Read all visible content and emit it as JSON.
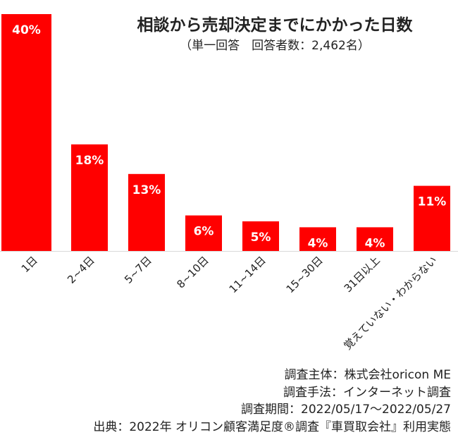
{
  "chart_data": {
    "type": "bar",
    "title": "相談から売却決定までにかかった日数",
    "subtitle": "（単一回答　回答者数：2,462名）",
    "categories": [
      "1日",
      "2~4日",
      "5~7日",
      "8~10日",
      "11~14日",
      "15~30日",
      "31日以上",
      "覚えていない・わからない"
    ],
    "values": [
      40,
      18,
      13,
      6,
      5,
      4,
      4,
      11
    ],
    "data_labels": [
      "40%",
      "18%",
      "13%",
      "6%",
      "5%",
      "4%",
      "4%",
      "11%"
    ],
    "unit": "%",
    "bar_color": "#ff0000",
    "xlabel": "",
    "ylabel": "",
    "ylim": [
      0,
      42
    ],
    "grid": false
  },
  "notes": [
    "調査主体：株式会社oricon ME",
    "調査手法：インターネット調査",
    "調査期間：2022/05/17～2022/05/27",
    "出典：2022年 オリコン顧客満足度®調査『車買取会社』利用実態"
  ]
}
